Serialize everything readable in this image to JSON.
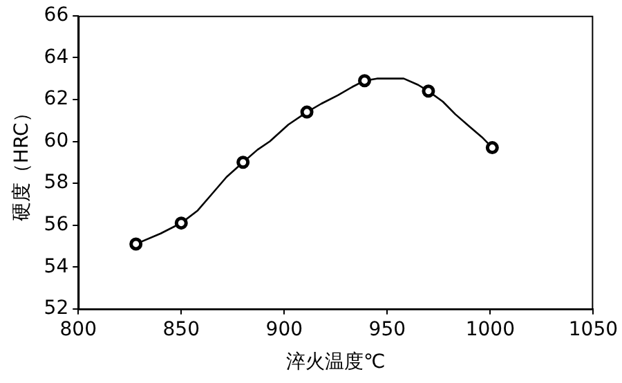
{
  "chart_data": {
    "type": "scatter",
    "xlabel": "淬火温度℃",
    "ylabel": "硬度（HRC）",
    "xlim": [
      800,
      1050
    ],
    "xticks": [
      800,
      850,
      900,
      950,
      1000,
      1050
    ],
    "ylim": [
      52,
      66
    ],
    "yticks": [
      52,
      54,
      56,
      58,
      60,
      62,
      64,
      66
    ],
    "grid": false,
    "legend": false,
    "marker": "circle",
    "series": [
      {
        "type": "scatter",
        "color": "#000000",
        "x": [
          828,
          850,
          880,
          911,
          939,
          970,
          1001
        ],
        "values": [
          55.1,
          56.1,
          59.0,
          61.4,
          62.9,
          62.4,
          59.7
        ]
      },
      {
        "type": "line",
        "color": "#000000",
        "marker": "none",
        "x": [
          828,
          840,
          850,
          858,
          865,
          872,
          880,
          887,
          893,
          902,
          911,
          918,
          926,
          933,
          939,
          945,
          951,
          958,
          965,
          970,
          977,
          983,
          990,
          996,
          1001
        ],
        "values": [
          55.1,
          55.6,
          56.1,
          56.7,
          57.5,
          58.3,
          59.0,
          59.6,
          60.0,
          60.8,
          61.4,
          61.8,
          62.2,
          62.6,
          62.9,
          63.0,
          63.0,
          63.0,
          62.7,
          62.4,
          61.9,
          61.3,
          60.7,
          60.2,
          59.7
        ]
      }
    ]
  }
}
